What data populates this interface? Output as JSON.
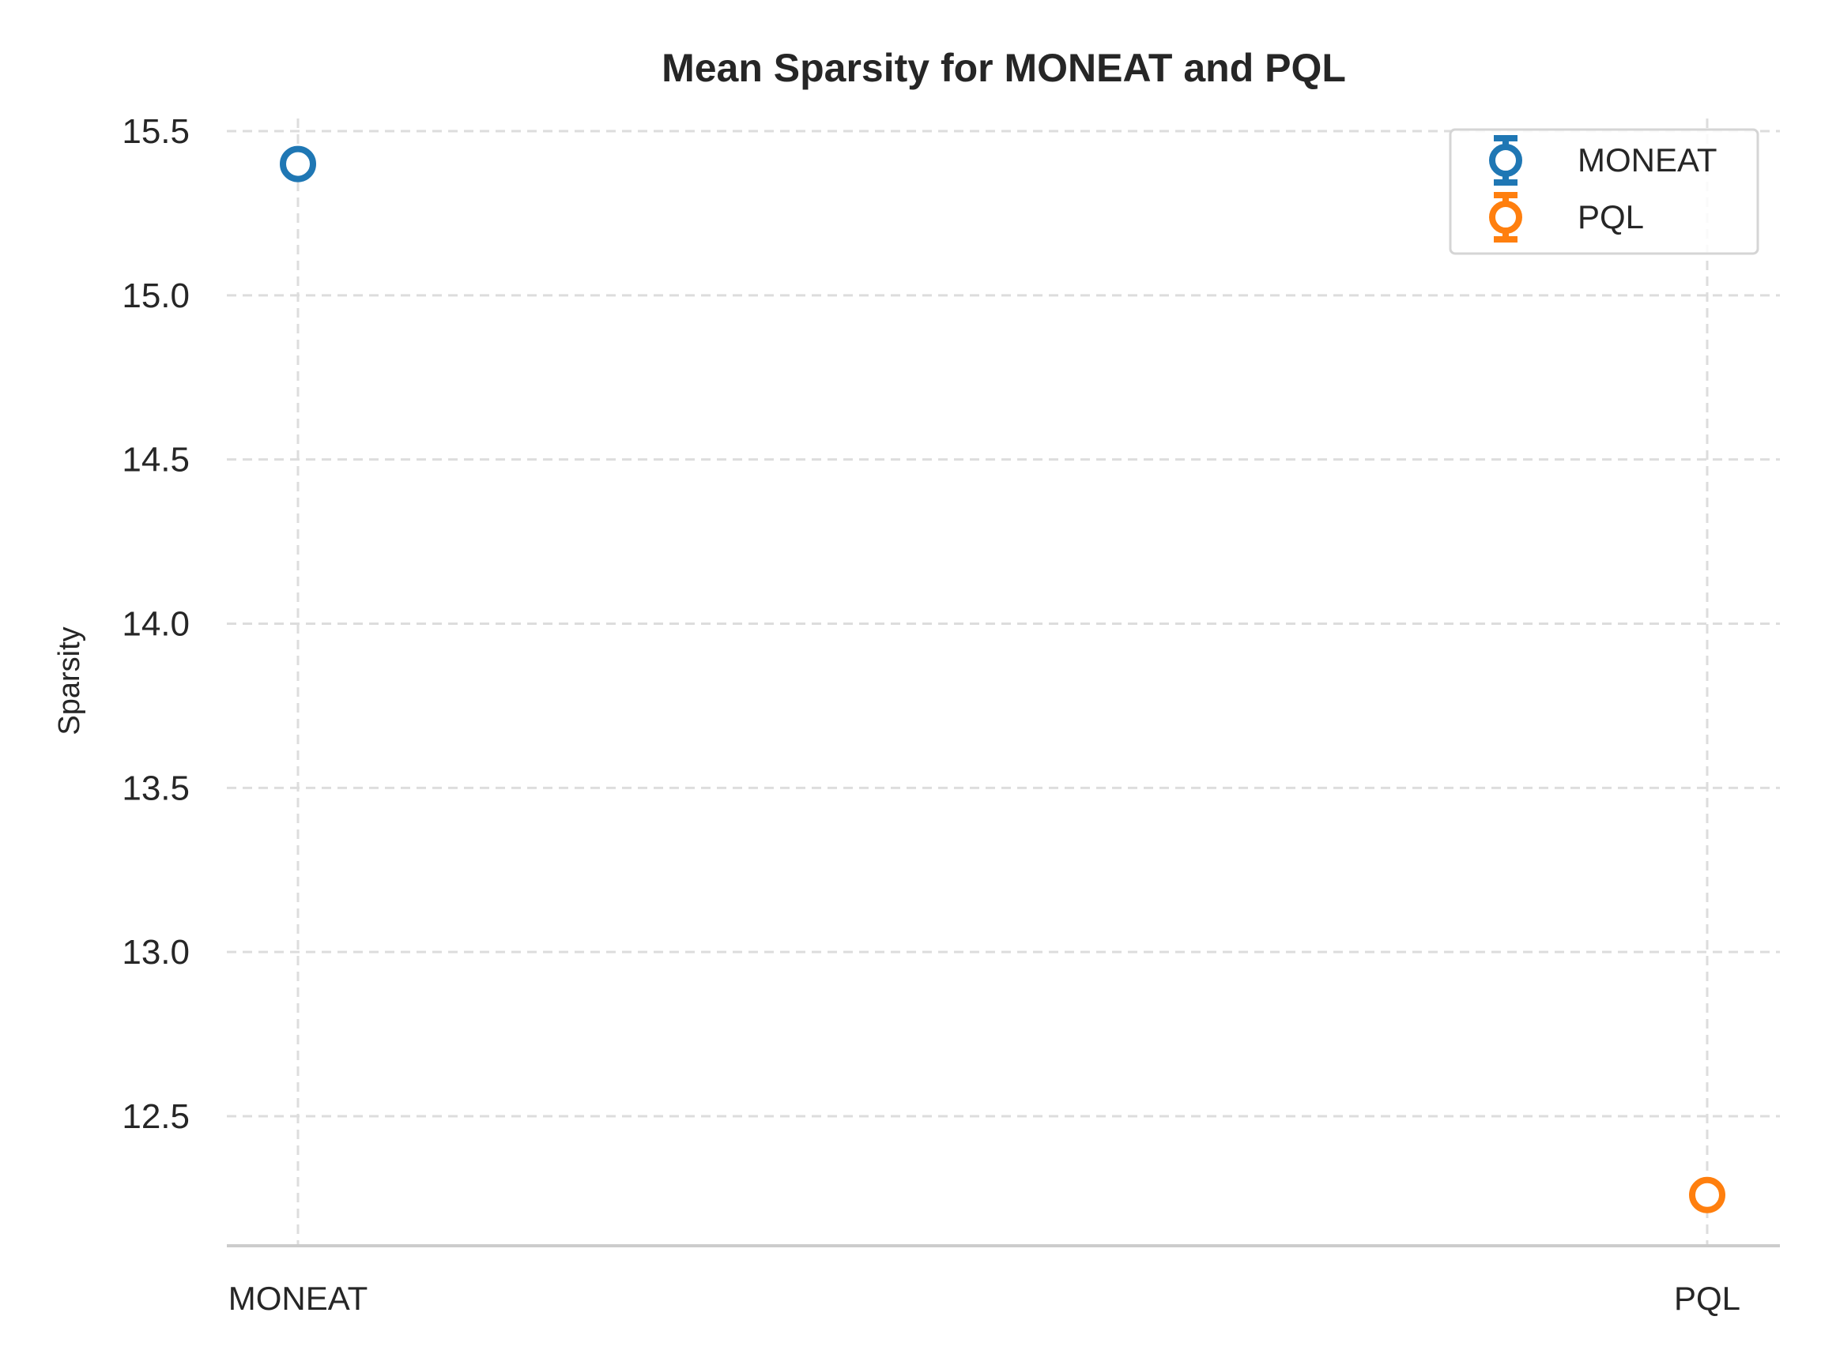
{
  "chart_data": {
    "type": "scatter",
    "title": "Mean Sparsity for MONEAT and PQL",
    "xlabel": "",
    "ylabel": "Sparsity",
    "categories": [
      "MONEAT",
      "PQL"
    ],
    "series": [
      {
        "name": "MONEAT",
        "category": "MONEAT",
        "value": 15.4,
        "color": "#1f77b4",
        "marker": "open-circle-with-errorbar"
      },
      {
        "name": "PQL",
        "category": "PQL",
        "value": 12.26,
        "color": "#ff7f0e",
        "marker": "open-circle-with-errorbar"
      }
    ],
    "yticks": [
      "12.5",
      "13.0",
      "13.5",
      "14.0",
      "14.5",
      "15.0",
      "15.5"
    ],
    "ylim": [
      12.1,
      15.55
    ],
    "grid": true,
    "grid_style": "dashed",
    "legend_position": "top-right"
  }
}
